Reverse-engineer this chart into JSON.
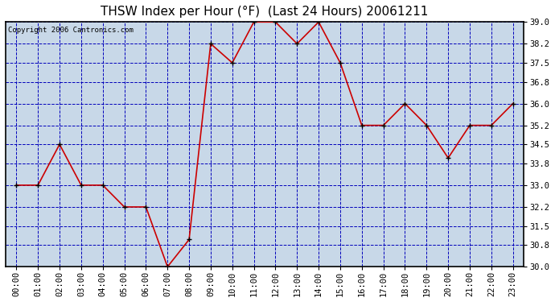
{
  "title": "THSW Index per Hour (°F)  (Last 24 Hours) 20061211",
  "copyright": "Copyright 2006 Cantronics.com",
  "hours": [
    0,
    1,
    2,
    3,
    4,
    5,
    6,
    7,
    8,
    9,
    10,
    11,
    12,
    13,
    14,
    15,
    16,
    17,
    18,
    19,
    20,
    21,
    22,
    23
  ],
  "values": [
    33.0,
    33.0,
    34.5,
    33.0,
    33.0,
    32.2,
    32.2,
    30.0,
    31.0,
    38.2,
    37.5,
    39.0,
    39.0,
    38.2,
    39.0,
    37.5,
    35.2,
    35.2,
    36.0,
    35.2,
    34.0,
    35.2,
    35.2,
    36.0
  ],
  "xlim": [
    -0.5,
    23.5
  ],
  "ylim": [
    30.0,
    39.0
  ],
  "yticks": [
    30.0,
    30.8,
    31.5,
    32.2,
    33.0,
    33.8,
    34.5,
    35.2,
    36.0,
    36.8,
    37.5,
    38.2,
    39.0
  ],
  "fig_bg": "#ffffff",
  "plot_bg": "#c8d8e8",
  "line_color": "#cc0000",
  "marker_color": "#000000",
  "grid_color": "#0000bb",
  "title_color": "#000000",
  "border_color": "#000000",
  "copyright_color": "#000000",
  "tick_color": "#000000",
  "title_fontsize": 11,
  "tick_fontsize": 7.5,
  "copyright_fontsize": 6.5
}
